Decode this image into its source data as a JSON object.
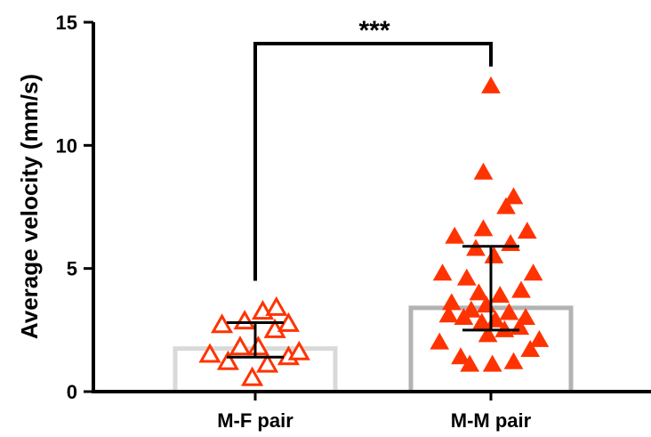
{
  "chart_data": {
    "type": "scatter",
    "ylabel": "Average velocity (mm/s)",
    "xlabel": "",
    "ylim": [
      0,
      15
    ],
    "yticks": [
      0,
      5,
      10,
      15
    ],
    "categories": [
      "M-F pair",
      "M-M pair"
    ],
    "significance": "***",
    "colors": {
      "points": "#ff3300",
      "bar_mf": "#d9d9d9",
      "bar_mm": "#b3b3b3",
      "errorbar": "#000000"
    },
    "groups": [
      {
        "name": "M-F pair",
        "marker": "open-triangle",
        "bar_value": 1.75,
        "median": 1.75,
        "iqr": [
          1.4,
          2.8
        ],
        "points": [
          {
            "dx": -0.3,
            "y": 1.5
          },
          {
            "dx": -0.22,
            "y": 2.7
          },
          {
            "dx": -0.18,
            "y": 1.2
          },
          {
            "dx": -0.1,
            "y": 1.8
          },
          {
            "dx": -0.07,
            "y": 2.85
          },
          {
            "dx": -0.02,
            "y": 0.55
          },
          {
            "dx": 0.02,
            "y": 1.8
          },
          {
            "dx": 0.05,
            "y": 3.25
          },
          {
            "dx": 0.08,
            "y": 1.1
          },
          {
            "dx": 0.13,
            "y": 2.5
          },
          {
            "dx": 0.14,
            "y": 3.4
          },
          {
            "dx": 0.22,
            "y": 2.75
          },
          {
            "dx": 0.22,
            "y": 1.4
          },
          {
            "dx": 0.29,
            "y": 1.6
          }
        ]
      },
      {
        "name": "M-M pair",
        "marker": "filled-triangle",
        "bar_value": 3.4,
        "median": 3.4,
        "iqr": [
          2.5,
          5.9
        ],
        "points": [
          {
            "dx": 0.0,
            "y": 12.4
          },
          {
            "dx": -0.05,
            "y": 8.9
          },
          {
            "dx": 0.1,
            "y": 7.5
          },
          {
            "dx": 0.15,
            "y": 7.9
          },
          {
            "dx": -0.24,
            "y": 6.3
          },
          {
            "dx": -0.05,
            "y": 6.6
          },
          {
            "dx": 0.24,
            "y": 6.5
          },
          {
            "dx": -0.1,
            "y": 5.8
          },
          {
            "dx": 0.13,
            "y": 6.0
          },
          {
            "dx": 0.02,
            "y": 5.5
          },
          {
            "dx": -0.32,
            "y": 4.8
          },
          {
            "dx": 0.28,
            "y": 4.8
          },
          {
            "dx": -0.16,
            "y": 4.6
          },
          {
            "dx": -0.08,
            "y": 4.0
          },
          {
            "dx": 0.06,
            "y": 3.9
          },
          {
            "dx": 0.2,
            "y": 4.1
          },
          {
            "dx": -0.26,
            "y": 3.6
          },
          {
            "dx": -0.13,
            "y": 3.3
          },
          {
            "dx": -0.03,
            "y": 3.5
          },
          {
            "dx": 0.12,
            "y": 3.2
          },
          {
            "dx": 0.23,
            "y": 3.0
          },
          {
            "dx": -0.28,
            "y": 3.1
          },
          {
            "dx": -0.18,
            "y": 3.0
          },
          {
            "dx": -0.06,
            "y": 2.8
          },
          {
            "dx": 0.03,
            "y": 2.9
          },
          {
            "dx": 0.09,
            "y": 2.5
          },
          {
            "dx": 0.19,
            "y": 2.6
          },
          {
            "dx": 0.32,
            "y": 2.1
          },
          {
            "dx": -0.34,
            "y": 2.0
          },
          {
            "dx": -0.2,
            "y": 1.4
          },
          {
            "dx": -0.02,
            "y": 2.3
          },
          {
            "dx": 0.01,
            "y": 1.1
          },
          {
            "dx": -0.14,
            "y": 1.1
          },
          {
            "dx": 0.15,
            "y": 1.2
          },
          {
            "dx": 0.26,
            "y": 1.7
          }
        ]
      }
    ]
  }
}
